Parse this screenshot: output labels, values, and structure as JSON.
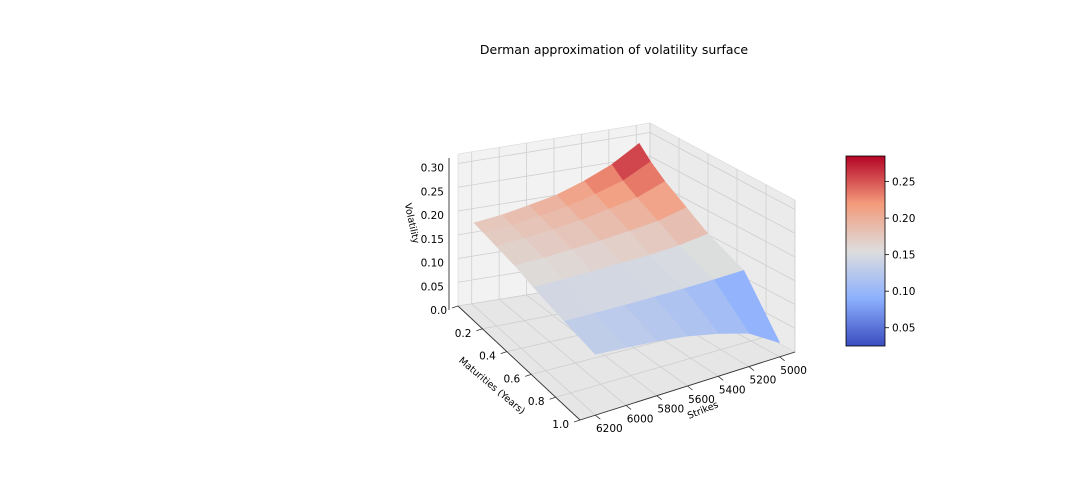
{
  "chart_data": {
    "type": "surface3d",
    "title": "Derman approximation of volatility surface",
    "xlabel": "Strikes",
    "ylabel": "Maturities (Years)",
    "zlabel": "Volatility",
    "colormap": "coolwarm",
    "x": {
      "range": [
        4900,
        6300
      ],
      "ticks": [
        "5000",
        "5200",
        "5400",
        "5600",
        "5800",
        "6000",
        "6200"
      ]
    },
    "y": {
      "range": [
        0.0,
        1.0
      ],
      "ticks": [
        "0.0",
        "0.2",
        "0.4",
        "0.6",
        "0.8",
        "1.0"
      ]
    },
    "z": {
      "range": [
        0.0,
        0.32
      ],
      "ticks": [
        "0.05",
        "0.10",
        "0.15",
        "0.20",
        "0.25",
        "0.30"
      ]
    },
    "surface": {
      "strikes": [
        5000,
        5200,
        5400,
        5600,
        5800,
        6000,
        6200
      ],
      "maturities": [
        0.02,
        0.1,
        0.2,
        0.35,
        0.5,
        0.75,
        1.0
      ],
      "volatility": [
        [
          0.285,
          0.25,
          0.225,
          0.205,
          0.193,
          0.182,
          0.175
        ],
        [
          0.26,
          0.23,
          0.212,
          0.197,
          0.187,
          0.178,
          0.172
        ],
        [
          0.235,
          0.212,
          0.2,
          0.188,
          0.18,
          0.173,
          0.168
        ],
        [
          0.205,
          0.19,
          0.182,
          0.175,
          0.17,
          0.165,
          0.162
        ],
        [
          0.175,
          0.165,
          0.16,
          0.158,
          0.155,
          0.153,
          0.152
        ],
        [
          0.14,
          0.138,
          0.137,
          0.137,
          0.137,
          0.138,
          0.139
        ],
        [
          0.03,
          0.07,
          0.09,
          0.105,
          0.115,
          0.122,
          0.128
        ]
      ]
    },
    "colorbar": {
      "range": [
        0.025,
        0.285
      ],
      "ticks": [
        "0.05",
        "0.10",
        "0.15",
        "0.20",
        "0.25"
      ]
    },
    "grid": true
  }
}
